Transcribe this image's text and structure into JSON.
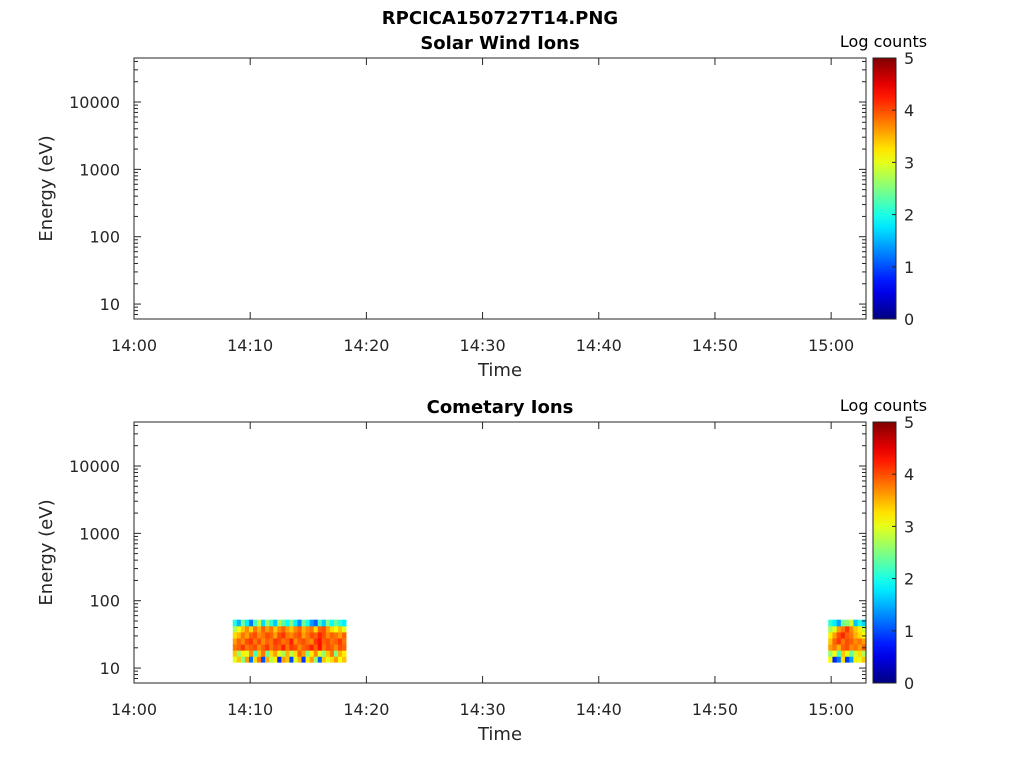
{
  "figure": {
    "title": "RPCICA150727T14.PNG"
  },
  "chart_data": [
    {
      "type": "heatmap",
      "title": "Solar Wind Ions",
      "xlabel": "Time",
      "ylabel": "Energy (eV)",
      "x_scale": "time",
      "xlim": [
        "14:00",
        "15:03"
      ],
      "xticks": [
        "14:00",
        "14:10",
        "14:20",
        "14:30",
        "14:40",
        "14:50",
        "15:00"
      ],
      "y_scale": "log",
      "ylim": [
        6,
        45000
      ],
      "yticks": [
        "10",
        "100",
        "1000",
        "10000"
      ],
      "colorbar": {
        "label": "Log counts",
        "range": [
          0,
          5
        ],
        "ticks": [
          "0",
          "1",
          "2",
          "3",
          "4",
          "5"
        ],
        "colormap": "jet"
      },
      "data_blocks": []
    },
    {
      "type": "heatmap",
      "title": "Cometary Ions",
      "xlabel": "Time",
      "ylabel": "Energy (eV)",
      "x_scale": "time",
      "xlim": [
        "14:00",
        "15:03"
      ],
      "xticks": [
        "14:00",
        "14:10",
        "14:20",
        "14:30",
        "14:40",
        "14:50",
        "15:00"
      ],
      "y_scale": "log",
      "ylim": [
        6,
        45000
      ],
      "yticks": [
        "10",
        "100",
        "1000",
        "10000"
      ],
      "colorbar": {
        "label": "Log counts",
        "range": [
          0,
          5
        ],
        "ticks": [
          "0",
          "1",
          "2",
          "3",
          "4",
          "5"
        ],
        "colormap": "jet"
      },
      "data_blocks": [
        {
          "t_start": "14:08:30",
          "t_end": "14:18:15",
          "energy_levels_eV": [
            13.5,
            16.5,
            20.5,
            25,
            31,
            38,
            47
          ],
          "time_bins": 28,
          "log_counts_rows": [
            [
              3.0,
              3.4,
              2.5,
              3.6,
              1.2,
              3.3,
              3.8,
              1.0,
              3.5,
              2.8,
              3.2,
              0.8,
              3.6,
              3.4,
              1.0,
              3.0,
              3.5,
              0.9,
              3.2,
              3.6,
              2.6,
              1.1,
              3.4,
              3.0,
              3.3,
              3.6,
              3.1,
              3.4
            ],
            [
              3.4,
              2.6,
              3.2,
              3.0,
              3.7,
              2.2,
              3.4,
              3.8,
              2.4,
              3.3,
              3.6,
              3.0,
              2.7,
              3.5,
              2.8,
              3.3,
              3.9,
              3.6,
              2.5,
              3.2,
              3.7,
              3.0,
              2.6,
              3.4,
              3.8,
              2.5,
              3.5,
              3.2
            ],
            [
              3.8,
              3.9,
              4.1,
              3.8,
              3.9,
              4.0,
              3.7,
              3.9,
              4.1,
              3.8,
              4.0,
              3.9,
              4.2,
              3.8,
              4.1,
              4.0,
              3.7,
              3.9,
              4.0,
              4.2,
              3.9,
              4.3,
              3.8,
              4.0,
              3.9,
              3.7,
              4.0,
              3.9
            ],
            [
              3.6,
              3.9,
              3.7,
              4.0,
              4.1,
              3.8,
              4.0,
              3.7,
              3.9,
              3.8,
              4.1,
              4.0,
              3.8,
              3.9,
              4.2,
              3.7,
              3.9,
              4.0,
              3.8,
              3.7,
              4.1,
              4.3,
              3.9,
              4.0,
              3.8,
              3.9,
              4.1,
              3.8
            ],
            [
              3.3,
              3.5,
              3.8,
              3.6,
              3.9,
              4.0,
              3.7,
              3.8,
              4.0,
              3.9,
              3.6,
              4.0,
              4.1,
              3.8,
              3.7,
              3.9,
              4.0,
              3.6,
              3.8,
              4.0,
              3.9,
              4.2,
              4.0,
              3.7,
              3.9,
              3.8,
              3.6,
              3.9
            ],
            [
              2.7,
              3.1,
              3.4,
              3.7,
              3.3,
              3.8,
              3.5,
              3.9,
              3.6,
              3.8,
              3.4,
              3.7,
              3.9,
              3.6,
              3.4,
              3.7,
              3.9,
              3.5,
              3.7,
              3.8,
              3.3,
              3.9,
              4.0,
              3.6,
              3.3,
              3.1,
              3.4,
              3.0
            ],
            [
              2.0,
              1.5,
              2.4,
              1.8,
              1.2,
              2.2,
              2.8,
              1.7,
              2.6,
              2.1,
              1.6,
              2.7,
              2.3,
              1.9,
              2.5,
              1.8,
              1.3,
              2.4,
              2.0,
              1.4,
              1.1,
              2.2,
              1.6,
              2.5,
              1.9,
              2.4,
              2.1,
              1.8
            ]
          ]
        },
        {
          "t_start": "14:59:45",
          "t_end": "15:03:00",
          "energy_levels_eV": [
            13.5,
            16.5,
            20.5,
            25,
            31,
            38,
            47
          ],
          "time_bins": 9,
          "log_counts_rows": [
            [
              3.1,
              0.8,
              1.2,
              3.3,
              0.9,
              1.4,
              3.2,
              3.0,
              3.4
            ],
            [
              2.6,
              3.1,
              2.2,
              3.4,
              3.0,
              2.4,
              2.9,
              3.3,
              2.7
            ],
            [
              3.6,
              3.8,
              3.5,
              3.9,
              4.0,
              3.7,
              3.8,
              3.6,
              3.9
            ],
            [
              3.4,
              3.9,
              4.1,
              3.8,
              4.0,
              3.9,
              3.7,
              3.8,
              3.6
            ],
            [
              3.2,
              3.6,
              4.0,
              4.2,
              3.9,
              3.8,
              3.5,
              3.3,
              3.1
            ],
            [
              2.7,
              3.0,
              3.6,
              3.8,
              4.1,
              3.7,
              3.4,
              3.2,
              2.9
            ],
            [
              2.1,
              1.8,
              1.4,
              2.4,
              2.6,
              2.9,
              1.6,
              2.0,
              1.7
            ]
          ]
        }
      ]
    }
  ]
}
